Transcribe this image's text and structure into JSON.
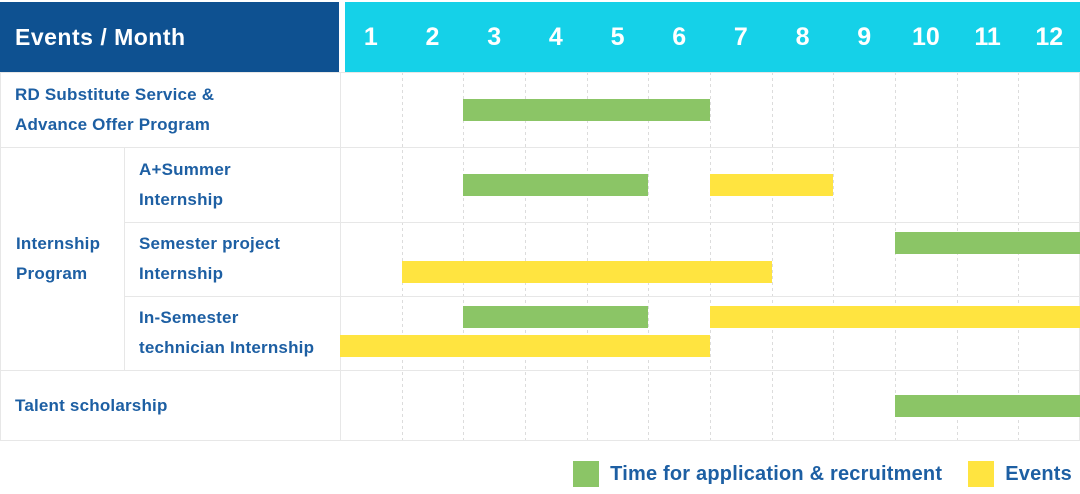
{
  "title": "Events / Month",
  "months": [
    "1",
    "2",
    "3",
    "4",
    "5",
    "6",
    "7",
    "8",
    "9",
    "10",
    "11",
    "12"
  ],
  "colors": {
    "header_bg": "#0e5191",
    "month_bar_bg": "#15d1e8",
    "application_green": "#8bc566",
    "events_yellow": "#ffe440",
    "label_blue": "#1d5fa3"
  },
  "group": {
    "label_lines": [
      "Internship",
      "Program"
    ]
  },
  "rows": [
    {
      "name": "rd-substitute-service",
      "label_lines": [
        "RD Substitute Service &",
        "Advance Offer Program"
      ],
      "grouped": false,
      "bars": [
        {
          "kind": "application",
          "start_month": 3,
          "end_month": 6,
          "line": "center"
        }
      ]
    },
    {
      "name": "a-plus-summer-internship",
      "label_lines": [
        "A+Summer",
        "Internship"
      ],
      "grouped": true,
      "bars": [
        {
          "kind": "application",
          "start_month": 3,
          "end_month": 5,
          "line": "center"
        },
        {
          "kind": "events",
          "start_month": 7,
          "end_month": 8,
          "line": "center"
        }
      ]
    },
    {
      "name": "semester-project-internship",
      "label_lines": [
        "Semester project",
        "Internship"
      ],
      "grouped": true,
      "bars": [
        {
          "kind": "application",
          "start_month": 10,
          "end_month": 12,
          "line": "top"
        },
        {
          "kind": "events",
          "start_month": 2,
          "end_month": 7,
          "line": "bottom"
        }
      ]
    },
    {
      "name": "in-semester-technician-internship",
      "label_lines": [
        "In-Semester",
        "technician Internship"
      ],
      "grouped": true,
      "bars": [
        {
          "kind": "application",
          "start_month": 3,
          "end_month": 5,
          "line": "top"
        },
        {
          "kind": "events",
          "start_month": 7,
          "end_month": 12,
          "line": "top"
        },
        {
          "kind": "events",
          "start_month": 1,
          "end_month": 6,
          "line": "bottom"
        }
      ]
    },
    {
      "name": "talent-scholarship",
      "label_lines": [
        "Talent scholarship"
      ],
      "grouped": false,
      "bars": [
        {
          "kind": "application",
          "start_month": 10,
          "end_month": 12,
          "line": "center"
        }
      ]
    }
  ],
  "legend": [
    {
      "kind": "application",
      "label": "Time for application & recruitment"
    },
    {
      "kind": "events",
      "label": "Events"
    }
  ],
  "chart_data": {
    "type": "bar",
    "subtype": "gantt_month_timeline",
    "title": "Events / Month",
    "xlabel": "Month",
    "x_ticks": [
      1,
      2,
      3,
      4,
      5,
      6,
      7,
      8,
      9,
      10,
      11,
      12
    ],
    "x_range": [
      1,
      12
    ],
    "legend": [
      {
        "label": "Time for application & recruitment",
        "color": "#8bc566"
      },
      {
        "label": "Events",
        "color": "#ffe440"
      }
    ],
    "tasks": [
      {
        "event": "RD Substitute Service & Advance Offer Program",
        "group": null,
        "application_recruitment_months": [
          [
            3,
            6
          ]
        ],
        "events_months": []
      },
      {
        "event": "A+Summer Internship",
        "group": "Internship Program",
        "application_recruitment_months": [
          [
            3,
            5
          ]
        ],
        "events_months": [
          [
            7,
            8
          ]
        ]
      },
      {
        "event": "Semester project Internship",
        "group": "Internship Program",
        "application_recruitment_months": [
          [
            10,
            12
          ]
        ],
        "events_months": [
          [
            2,
            7
          ]
        ]
      },
      {
        "event": "In-Semester technician Internship",
        "group": "Internship Program",
        "application_recruitment_months": [
          [
            3,
            5
          ]
        ],
        "events_months": [
          [
            1,
            6
          ],
          [
            7,
            12
          ]
        ]
      },
      {
        "event": "Talent scholarship",
        "group": null,
        "application_recruitment_months": [
          [
            10,
            12
          ]
        ],
        "events_months": []
      }
    ]
  }
}
